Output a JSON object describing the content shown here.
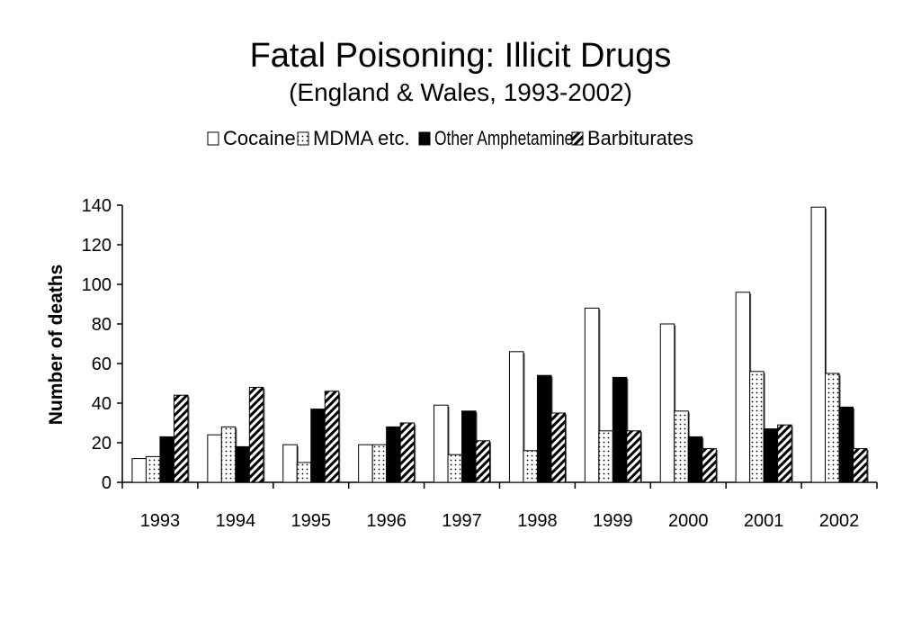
{
  "chart_data": {
    "type": "bar",
    "title": "Fatal Poisoning: Illicit Drugs",
    "subtitle": "(England & Wales, 1993-2002)",
    "xlabel": "",
    "ylabel": "Number of deaths",
    "categories": [
      "1993",
      "1994",
      "1995",
      "1996",
      "1997",
      "1998",
      "1999",
      "2000",
      "2001",
      "2002"
    ],
    "series": [
      {
        "name": "Cocaine",
        "pattern": "white",
        "values": [
          12,
          24,
          19,
          19,
          39,
          66,
          88,
          80,
          96,
          139
        ]
      },
      {
        "name": "MDMA etc.",
        "pattern": "dotted",
        "values": [
          13,
          28,
          10,
          19,
          14,
          16,
          26,
          36,
          56,
          55
        ]
      },
      {
        "name": "Other Amphetamines",
        "pattern": "black",
        "values": [
          23,
          18,
          37,
          28,
          36,
          54,
          53,
          23,
          27,
          38
        ]
      },
      {
        "name": "Barbiturates",
        "pattern": "hatched",
        "values": [
          44,
          48,
          46,
          30,
          21,
          35,
          26,
          17,
          29,
          17
        ]
      }
    ],
    "ylim": [
      0,
      140
    ],
    "yticks": [
      0,
      20,
      40,
      60,
      80,
      100,
      120,
      140
    ],
    "grid": false,
    "legend_position": "top"
  }
}
